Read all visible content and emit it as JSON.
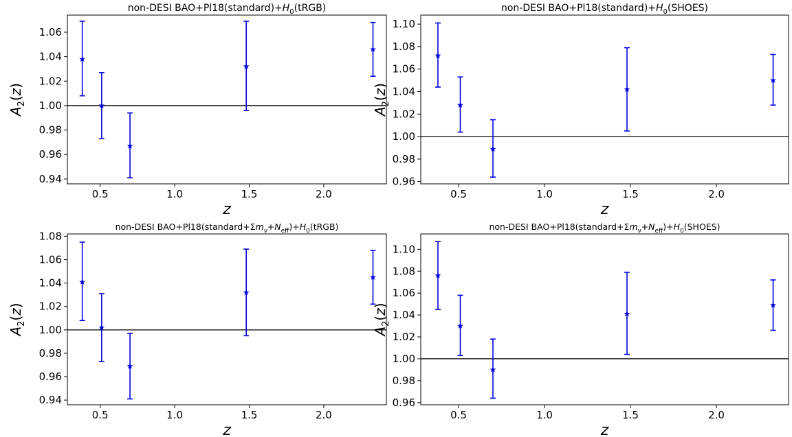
{
  "chart_data": [
    {
      "type": "scatter",
      "title_html": "non-DESI BAO+Pl18(standard)+<tspan font-style='italic'>H</tspan><tspan font-size='10' dy='4'>0</tspan><tspan dy='-4'>(tRGB)</tspan>",
      "title": "non-DESI BAO+Pl18(standard)+H0(tRGB)",
      "xlabel": "z",
      "ylabel": "A2(z)",
      "xlim": [
        0.28,
        2.42
      ],
      "ylim": [
        0.936,
        1.074
      ],
      "xticks": [
        "0.5",
        "1.0",
        "1.5",
        "2.0"
      ],
      "yticks": [
        "0.94",
        "0.96",
        "0.98",
        "1.00",
        "1.02",
        "1.04",
        "1.06"
      ],
      "reference_line": 1.0,
      "series": [
        {
          "color": "#0000dd",
          "points": [
            {
              "x": 0.38,
              "y": 1.038,
              "ylow": 1.008,
              "yhigh": 1.069
            },
            {
              "x": 0.51,
              "y": 1.0,
              "ylow": 0.973,
              "yhigh": 1.027
            },
            {
              "x": 0.7,
              "y": 0.967,
              "ylow": 0.941,
              "yhigh": 0.994
            },
            {
              "x": 1.48,
              "y": 1.032,
              "ylow": 0.996,
              "yhigh": 1.069
            },
            {
              "x": 2.33,
              "y": 1.046,
              "ylow": 1.024,
              "yhigh": 1.068
            }
          ]
        }
      ]
    },
    {
      "type": "scatter",
      "title_html": "non-DESI BAO+Pl18(standard)+<tspan font-style='italic'>H</tspan><tspan font-size='10' dy='4'>0</tspan><tspan dy='-4'>(SHOES)</tspan>",
      "title": "non-DESI BAO+Pl18(standard)+H0(SHOES)",
      "xlabel": "z",
      "ylabel": "A2(z)",
      "xlim": [
        0.28,
        2.42
      ],
      "ylim": [
        0.958,
        1.108
      ],
      "xticks": [
        "0.5",
        "1.0",
        "1.5",
        "2.0"
      ],
      "yticks": [
        "0.96",
        "0.98",
        "1.00",
        "1.02",
        "1.04",
        "1.06",
        "1.08",
        "1.10"
      ],
      "reference_line": 1.0,
      "series": [
        {
          "color": "#0000dd",
          "points": [
            {
              "x": 0.38,
              "y": 1.072,
              "ylow": 1.044,
              "yhigh": 1.101
            },
            {
              "x": 0.51,
              "y": 1.028,
              "ylow": 1.004,
              "yhigh": 1.053
            },
            {
              "x": 0.7,
              "y": 0.989,
              "ylow": 0.964,
              "yhigh": 1.015
            },
            {
              "x": 1.48,
              "y": 1.042,
              "ylow": 1.005,
              "yhigh": 1.079
            },
            {
              "x": 2.33,
              "y": 1.05,
              "ylow": 1.028,
              "yhigh": 1.073
            }
          ]
        }
      ]
    },
    {
      "type": "scatter",
      "title_html": "non-DESI BAO+Pl18(standard+Σ<tspan font-style='italic'>m</tspan><tspan font-size='9' dy='4' font-style='italic'>ν</tspan><tspan dy='-4'>+</tspan><tspan font-style='italic'>N</tspan><tspan font-size='9' dy='4'>eff</tspan><tspan dy='-4'>)+</tspan><tspan font-style='italic'>H</tspan><tspan font-size='9' dy='4'>0</tspan><tspan dy='-4'>(tRGB)</tspan>",
      "title": "non-DESI BAO+Pl18(standard+Σmν+Neff)+H0(tRGB)",
      "xlabel": "z",
      "ylabel": "A2(z)",
      "xlim": [
        0.28,
        2.42
      ],
      "ylim": [
        0.936,
        1.082
      ],
      "xticks": [
        "0.5",
        "1.0",
        "1.5",
        "2.0"
      ],
      "yticks": [
        "0.94",
        "0.96",
        "0.98",
        "1.00",
        "1.02",
        "1.04",
        "1.06",
        "1.08"
      ],
      "reference_line": 1.0,
      "series": [
        {
          "color": "#0000dd",
          "points": [
            {
              "x": 0.38,
              "y": 1.041,
              "ylow": 1.008,
              "yhigh": 1.075
            },
            {
              "x": 0.51,
              "y": 1.002,
              "ylow": 0.973,
              "yhigh": 1.031
            },
            {
              "x": 0.7,
              "y": 0.969,
              "ylow": 0.941,
              "yhigh": 0.997
            },
            {
              "x": 1.48,
              "y": 1.032,
              "ylow": 0.995,
              "yhigh": 1.069
            },
            {
              "x": 2.33,
              "y": 1.045,
              "ylow": 1.022,
              "yhigh": 1.068
            }
          ]
        }
      ]
    },
    {
      "type": "scatter",
      "title_html": "non-DESI BAO+Pl18(standard+Σ<tspan font-style='italic'>m</tspan><tspan font-size='9' dy='4' font-style='italic'>ν</tspan><tspan dy='-4'>+</tspan><tspan font-style='italic'>N</tspan><tspan font-size='9' dy='4'>eff</tspan><tspan dy='-4'>)+</tspan><tspan font-style='italic'>H</tspan><tspan font-size='9' dy='4'>0</tspan><tspan dy='-4'>(SHOES)</tspan>",
      "title": "non-DESI BAO+Pl18(standard+Σmν+Neff)+H0(SHOES)",
      "xlabel": "z",
      "ylabel": "A2(z)",
      "xlim": [
        0.28,
        2.42
      ],
      "ylim": [
        0.958,
        1.114
      ],
      "xticks": [
        "0.5",
        "1.0",
        "1.5",
        "2.0"
      ],
      "yticks": [
        "0.96",
        "0.98",
        "1.00",
        "1.02",
        "1.04",
        "1.06",
        "1.08",
        "1.10"
      ],
      "reference_line": 1.0,
      "series": [
        {
          "color": "#0000dd",
          "points": [
            {
              "x": 0.38,
              "y": 1.076,
              "ylow": 1.045,
              "yhigh": 1.107
            },
            {
              "x": 0.51,
              "y": 1.03,
              "ylow": 1.003,
              "yhigh": 1.058
            },
            {
              "x": 0.7,
              "y": 0.99,
              "ylow": 0.964,
              "yhigh": 1.018
            },
            {
              "x": 1.48,
              "y": 1.041,
              "ylow": 1.004,
              "yhigh": 1.079
            },
            {
              "x": 2.33,
              "y": 1.049,
              "ylow": 1.026,
              "yhigh": 1.072
            }
          ]
        }
      ]
    }
  ]
}
